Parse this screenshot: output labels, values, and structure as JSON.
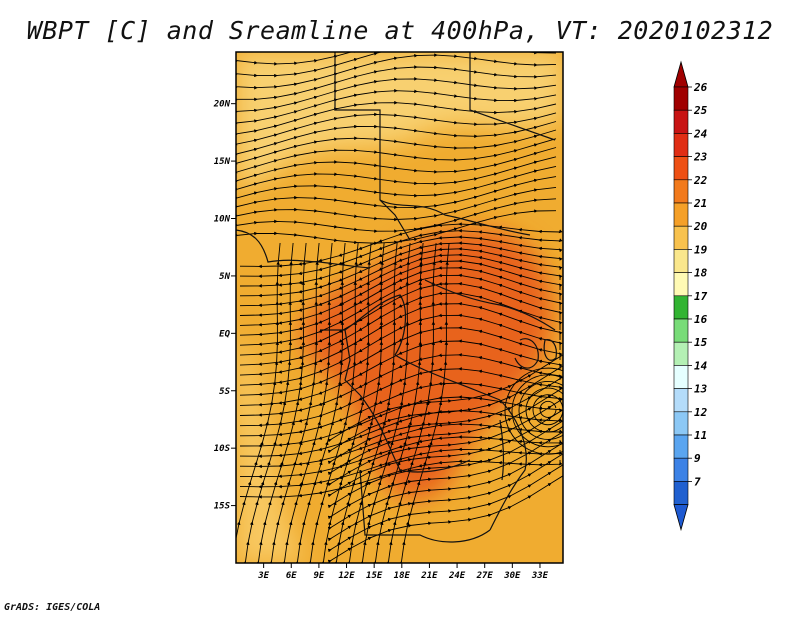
{
  "title": "WBPT [C] and Sreamline at 400hPa, VT: 2020102312",
  "footer": "GrADS: IGES/COLA",
  "map": {
    "lon_range": [
      0,
      35.5
    ],
    "lat_range": [
      -20,
      24.5
    ],
    "lat_ticks": [
      {
        "value": 20,
        "label": "20N"
      },
      {
        "value": 15,
        "label": "15N"
      },
      {
        "value": 10,
        "label": "10N"
      },
      {
        "value": 5,
        "label": "5N"
      },
      {
        "value": 0,
        "label": "EQ"
      },
      {
        "value": -5,
        "label": "5S"
      },
      {
        "value": -10,
        "label": "10S"
      },
      {
        "value": -15,
        "label": "15S"
      }
    ],
    "lon_ticks": [
      {
        "value": 3,
        "label": "3E"
      },
      {
        "value": 6,
        "label": "6E"
      },
      {
        "value": 9,
        "label": "9E"
      },
      {
        "value": 12,
        "label": "12E"
      },
      {
        "value": 15,
        "label": "15E"
      },
      {
        "value": 18,
        "label": "18E"
      },
      {
        "value": 21,
        "label": "21E"
      },
      {
        "value": 24,
        "label": "24E"
      },
      {
        "value": 27,
        "label": "27E"
      },
      {
        "value": 30,
        "label": "30E"
      },
      {
        "value": 33,
        "label": "33E"
      }
    ],
    "background_color": "#f0ac30",
    "regions": [
      {
        "name": "warm-core",
        "color": "#e8641e"
      },
      {
        "name": "north-band",
        "color": "#f8d070"
      },
      {
        "name": "southwest-band",
        "color": "#f8c860"
      }
    ]
  },
  "colorbar": {
    "labels": [
      "26",
      "25",
      "24",
      "23",
      "22",
      "21",
      "20",
      "19",
      "18",
      "17",
      "16",
      "15",
      "14",
      "13",
      "12",
      "11",
      "9",
      "7"
    ],
    "colors": [
      "#a00000",
      "#c81414",
      "#e02e14",
      "#ee5014",
      "#f27a1c",
      "#f5a028",
      "#f8c24e",
      "#fae78c",
      "#fffab4",
      "#32b432",
      "#78dc78",
      "#b4f0b4",
      "#e6ffff",
      "#b4dcfa",
      "#8cc8f5",
      "#5aa5f0",
      "#3c82e6",
      "#2060d0"
    ],
    "max_tip_color": "#a00000",
    "min_tip_color": "#1e5ad2"
  }
}
